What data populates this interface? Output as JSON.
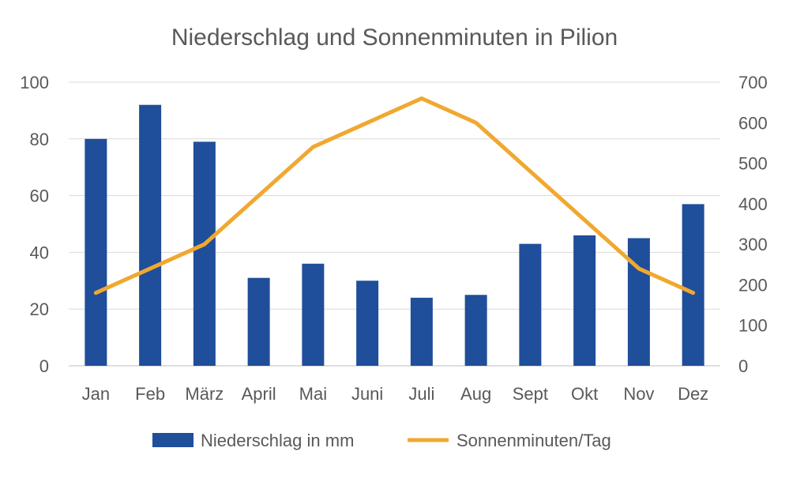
{
  "chart_data": {
    "type": "bar",
    "title": "Niederschlag und Sonnenminuten in Pilion",
    "categories": [
      "Jan",
      "Feb",
      "März",
      "April",
      "Mai",
      "Juni",
      "Juli",
      "Aug",
      "Sept",
      "Okt",
      "Nov",
      "Dez"
    ],
    "series": [
      {
        "name": "Niederschlag in mm",
        "type": "bar",
        "axis": "left",
        "color": "#1f4e9a",
        "values": [
          80,
          92,
          79,
          31,
          36,
          30,
          24,
          25,
          43,
          46,
          45,
          57
        ]
      },
      {
        "name": "Sonnenminuten/Tag",
        "type": "line",
        "axis": "right",
        "color": "#f0a830",
        "values": [
          180,
          240,
          300,
          420,
          540,
          600,
          660,
          600,
          480,
          360,
          240,
          180
        ]
      }
    ],
    "y_left": {
      "ylim": [
        0,
        100
      ],
      "ticks": [
        "0",
        "20",
        "40",
        "60",
        "80",
        "100"
      ]
    },
    "y_right": {
      "ylim": [
        0,
        700
      ],
      "ticks": [
        "0",
        "100",
        "200",
        "300",
        "400",
        "500",
        "600",
        "700"
      ]
    },
    "grid": true,
    "legend": "bottom"
  }
}
